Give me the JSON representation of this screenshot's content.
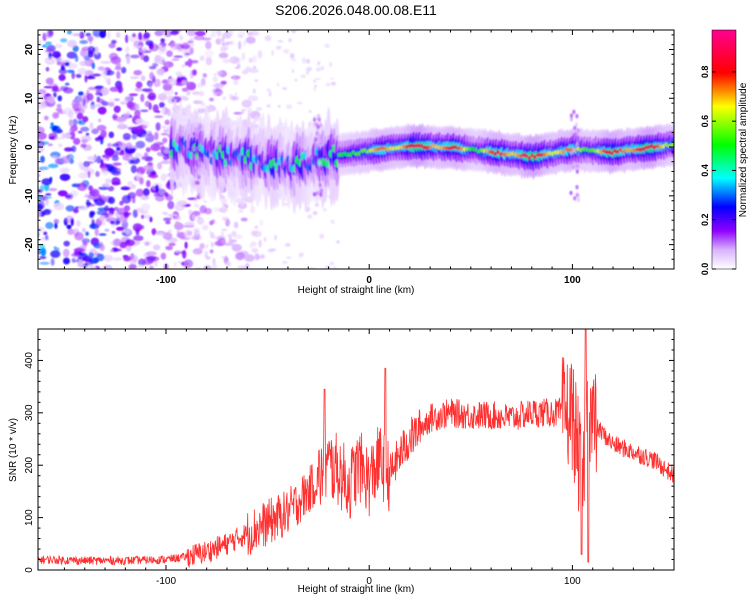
{
  "title": "S206.2026.048.00.08.E11",
  "chart_data": [
    {
      "type": "heatmap",
      "xlabel": "Height of straight line (km)",
      "ylabel": "Frequency (Hz)",
      "xlim": [
        -163,
        150
      ],
      "ylim": [
        -25,
        24
      ],
      "xticks": [
        -100,
        0,
        100
      ],
      "yticks": [
        -20,
        -10,
        0,
        10,
        20
      ],
      "colorbar": {
        "label": "Normalized spectral amplitude",
        "range": [
          0,
          0.97
        ],
        "ticks": [
          0.0,
          0.2,
          0.4,
          0.6,
          0.8
        ],
        "colormap": [
          "#ffffff",
          "#8f00ff",
          "#0000ff",
          "#00ffff",
          "#00ff00",
          "#ffff00",
          "#ff0000",
          "#ff0090"
        ]
      },
      "ridge": {
        "description_x": [
          -97,
          -80,
          -60,
          -40,
          -20,
          0,
          20,
          40,
          60,
          80,
          100,
          120,
          150
        ],
        "center_freq": [
          0.0,
          -1.0,
          -2.5,
          -4.0,
          -2.0,
          -0.8,
          0.2,
          0.0,
          -1.0,
          -2.0,
          -0.5,
          -1.0,
          0.5
        ]
      }
    },
    {
      "type": "line",
      "xlabel": "Height of straight line (km)",
      "ylabel": "SNR (10 * v/v)",
      "xlim": [
        -163,
        150
      ],
      "ylim": [
        0,
        460
      ],
      "xticks": [
        -100,
        0,
        100
      ],
      "yticks": [
        0,
        100,
        200,
        300,
        400
      ],
      "series": [
        {
          "name": "SNR",
          "color": "#ff3030",
          "x": [
            -163,
            -140,
            -120,
            -100,
            -90,
            -80,
            -70,
            -60,
            -50,
            -40,
            -30,
            -20,
            -15,
            -10,
            -5,
            0,
            5,
            10,
            15,
            20,
            30,
            40,
            50,
            60,
            70,
            80,
            90,
            100,
            105,
            108,
            110,
            120,
            130,
            140,
            150
          ],
          "y": [
            20,
            18,
            18,
            20,
            25,
            35,
            50,
            70,
            90,
            110,
            150,
            200,
            190,
            160,
            200,
            170,
            210,
            180,
            220,
            250,
            290,
            300,
            295,
            295,
            290,
            300,
            300,
            300,
            160,
            320,
            280,
            240,
            225,
            210,
            180
          ]
        }
      ],
      "annotations": [
        {
          "x": -22,
          "peak": 345
        },
        {
          "x": 8,
          "peak": 385
        },
        {
          "x": 107,
          "peak": 460
        },
        {
          "x": 107,
          "trough": 15
        }
      ]
    }
  ]
}
